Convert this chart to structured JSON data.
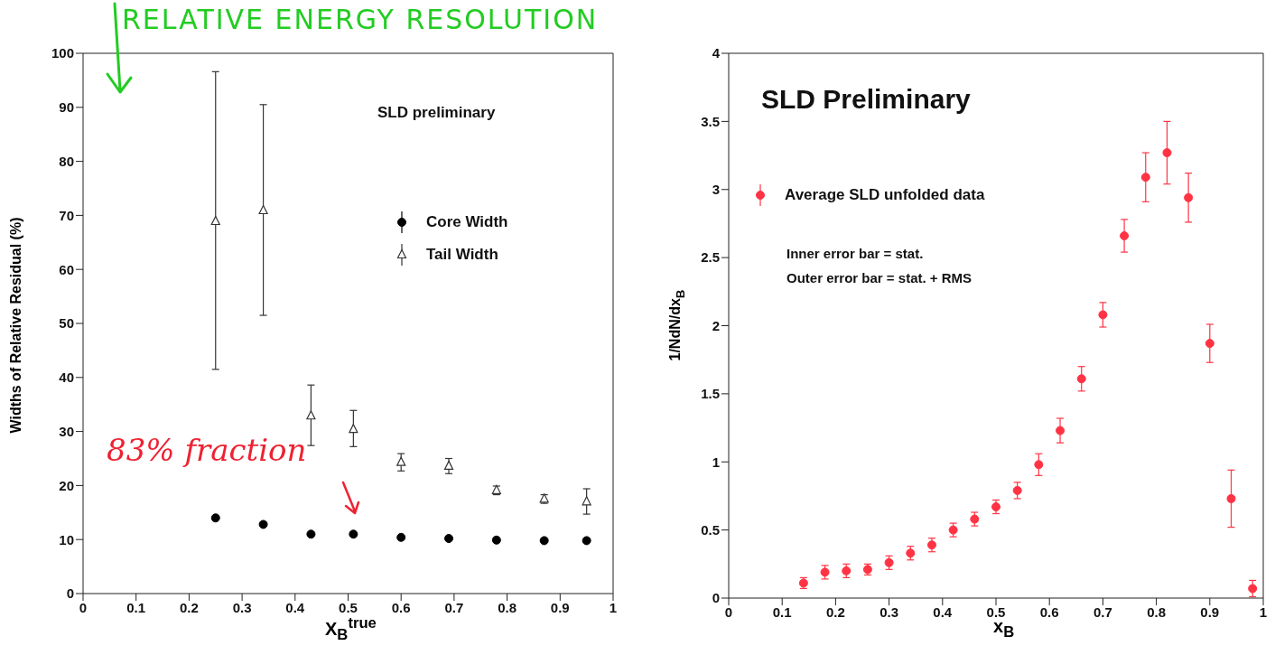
{
  "chart_data": [
    {
      "type": "scatter",
      "title": "RELATIVE ENERGY RESOLUTION",
      "xlabel": "X$_{B}$$^{true}$",
      "ylabel": "Widths of Relative Residual (%)",
      "xlim": [
        0,
        1
      ],
      "xticks": [
        0,
        0.1,
        0.2,
        0.3,
        0.4,
        0.5,
        0.6,
        0.7,
        0.8,
        0.9,
        1
      ],
      "ylim": [
        0,
        100
      ],
      "yticks": [
        0,
        10,
        20,
        30,
        40,
        50,
        60,
        70,
        80,
        90,
        100
      ],
      "legend": "right",
      "series": [
        {
          "name": "Core Width",
          "color": "#000000",
          "marker": "circle",
          "x": [
            0.25,
            0.34,
            0.43,
            0.51,
            0.6,
            0.69,
            0.78,
            0.87,
            0.95
          ],
          "values": [
            14,
            12.8,
            11,
            11,
            10.4,
            10.2,
            9.9,
            9.8,
            9.8
          ]
        },
        {
          "name": "Tail Width",
          "color": "#333333",
          "marker": "triangle",
          "x": [
            0.25,
            0.34,
            0.43,
            0.51,
            0.6,
            0.69,
            0.78,
            0.87,
            0.95
          ],
          "values": [
            68.9,
            70.9,
            32.9,
            30.4,
            24.3,
            23.6,
            19.1,
            17.5,
            17.0
          ],
          "errors": [
            [
              41.5,
              96.6
            ],
            [
              51.5,
              90.5
            ],
            [
              27.4,
              38.6
            ],
            [
              27.2,
              33.9
            ],
            1.6,
            1.4,
            0.8,
            0.8,
            [
              14.7,
              19.4
            ]
          ]
        }
      ],
      "annotations": [
        "SLD preliminary",
        "83% fraction"
      ]
    },
    {
      "type": "scatter",
      "xlabel": "x$_{B}$",
      "ylabel": "1/NdN/dx$_{B}$",
      "xlim": [
        0,
        1
      ],
      "xticks": [
        0,
        0.1,
        0.2,
        0.3,
        0.4,
        0.5,
        0.6,
        0.7,
        0.8,
        0.9,
        1
      ],
      "ylim": [
        0,
        4
      ],
      "yticks": [
        0,
        0.5,
        1,
        1.5,
        2,
        2.5,
        3,
        3.5,
        4
      ],
      "legend": "top left",
      "series": [
        {
          "name": "Average SLD unfolded data",
          "color": "#ff3344",
          "marker": "circle",
          "x": [
            0.14,
            0.18,
            0.22,
            0.26,
            0.3,
            0.34,
            0.38,
            0.42,
            0.46,
            0.5,
            0.54,
            0.58,
            0.62,
            0.66,
            0.7,
            0.74,
            0.78,
            0.82,
            0.86,
            0.9,
            0.94,
            0.98
          ],
          "values": [
            0.11,
            0.19,
            0.2,
            0.21,
            0.26,
            0.33,
            0.39,
            0.5,
            0.58,
            0.67,
            0.79,
            0.98,
            1.23,
            1.61,
            2.08,
            2.66,
            3.09,
            3.27,
            2.94,
            1.87,
            0.73,
            0.07
          ],
          "errors": [
            0.04,
            0.05,
            0.05,
            0.04,
            0.05,
            0.05,
            0.05,
            0.05,
            0.05,
            0.05,
            0.06,
            0.08,
            0.09,
            0.09,
            0.09,
            0.12,
            0.18,
            0.23,
            0.18,
            0.14,
            0.21,
            0.06
          ]
        }
      ],
      "annotations": [
        "SLD Preliminary",
        "Inner error bar = stat.",
        "Outer error bar = stat. + RMS"
      ]
    }
  ]
}
